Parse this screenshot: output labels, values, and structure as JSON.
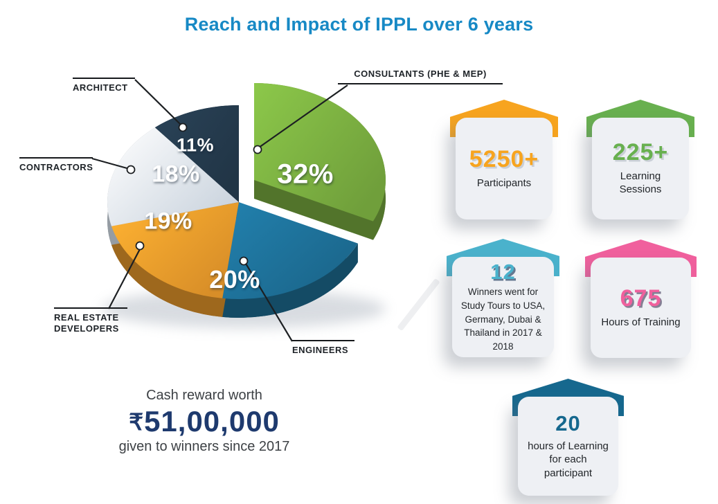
{
  "title": "Reach and Impact of IPPL over 6 years",
  "chart_data": {
    "type": "pie",
    "title": "Reach and Impact of IPPL over 6 years",
    "unit": "percent",
    "legend_position": "callouts",
    "slices": [
      {
        "label": "CONSULTANTS (PHE & MEP)",
        "value": 32,
        "pct_label": "32%",
        "color": "#78ab3f",
        "exploded": true
      },
      {
        "label": "ENGINEERS",
        "value": 20,
        "pct_label": "20%",
        "color": "#1d6e95",
        "exploded": false
      },
      {
        "label": "REAL ESTATE DEVELOPERS",
        "value": 19,
        "pct_label": "19%",
        "color": "#e8992b",
        "exploded": false
      },
      {
        "label": "CONTRACTORS",
        "value": 18,
        "pct_label": "18%",
        "color": "#dbe5f0",
        "exploded": false
      },
      {
        "label": "ARCHITECT",
        "value": 11,
        "pct_label": "11%",
        "color": "#24394b",
        "exploded": false
      }
    ]
  },
  "cash_reward": {
    "line1": "Cash reward worth",
    "currency_symbol": "₹",
    "amount": "51,00,000",
    "line2": "given to winners since 2017",
    "amount_color": "#1e3a6e"
  },
  "stat_cards": [
    {
      "value": "5250+",
      "label": "Participants",
      "color": "#f7a41f"
    },
    {
      "value": "225+",
      "label": "Learning Sessions",
      "color": "#68b04f"
    },
    {
      "value": "12",
      "label": "Winners went for Study Tours to USA, Germany, Dubai & Thailand in 2017 & 2018",
      "color": "#4ab2cc"
    },
    {
      "value": "675",
      "label": "Hours of Training",
      "color": "#f0609d"
    },
    {
      "value": "20",
      "label": "hours of Learning for each participant",
      "color": "#16688e"
    }
  ],
  "accent_colors": {
    "title_blue": "#1789c5"
  }
}
